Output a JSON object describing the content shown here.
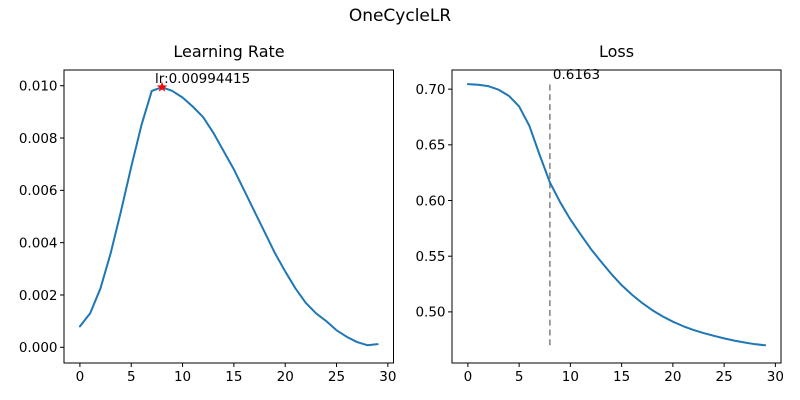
{
  "figure": {
    "suptitle": "OneCycleLR",
    "background": "#ffffff",
    "axis_color": "#000000",
    "line_color": "#1f77b4"
  },
  "chart_data": [
    {
      "type": "line",
      "title": "Learning Rate",
      "xlabel": "",
      "ylabel": "",
      "grid": false,
      "legend": null,
      "x": [
        0,
        1,
        2,
        3,
        4,
        5,
        6,
        7,
        8,
        9,
        10,
        11,
        12,
        13,
        14,
        15,
        16,
        17,
        18,
        19,
        20,
        21,
        22,
        23,
        24,
        25,
        26,
        27,
        28,
        29
      ],
      "series": [
        {
          "name": "learning_rate",
          "color": "#1f77b4",
          "values": [
            0.0008,
            0.0013,
            0.00225,
            0.0036,
            0.0052,
            0.0069,
            0.0085,
            0.0098,
            0.00994415,
            0.0098,
            0.00955,
            0.0092,
            0.0088,
            0.0082,
            0.0075,
            0.0068,
            0.006,
            0.0052,
            0.0044,
            0.0036,
            0.0029,
            0.00225,
            0.0017,
            0.0013,
            0.001,
            0.00065,
            0.0004,
            0.0002,
            8e-05,
            0.00012
          ]
        }
      ],
      "xlim": [
        -1.55,
        30.55
      ],
      "ylim": [
        -0.0006,
        0.0106
      ],
      "xticks": {
        "values": [
          0,
          5,
          10,
          15,
          20,
          25,
          30
        ],
        "labels": [
          "0",
          "5",
          "10",
          "15",
          "20",
          "25",
          "30"
        ]
      },
      "yticks": {
        "values": [
          0.0,
          0.002,
          0.004,
          0.006,
          0.008,
          0.01
        ],
        "labels": [
          "0.000",
          "0.002",
          "0.004",
          "0.006",
          "0.008",
          "0.010"
        ]
      },
      "annotation": {
        "text": "lr:0.00994415",
        "x": 8,
        "y": 0.00994415,
        "marker": "star",
        "marker_color": "#ff0000"
      }
    },
    {
      "type": "line",
      "title": "Loss",
      "xlabel": "",
      "ylabel": "",
      "grid": false,
      "legend": null,
      "x": [
        0,
        1,
        2,
        3,
        4,
        5,
        6,
        7,
        8,
        9,
        10,
        11,
        12,
        13,
        14,
        15,
        16,
        17,
        18,
        19,
        20,
        21,
        22,
        23,
        24,
        25,
        26,
        27,
        28,
        29
      ],
      "series": [
        {
          "name": "loss",
          "color": "#1f77b4",
          "values": [
            0.7045,
            0.704,
            0.7027,
            0.6995,
            0.694,
            0.6845,
            0.667,
            0.641,
            0.6163,
            0.5985,
            0.583,
            0.5695,
            0.5565,
            0.545,
            0.534,
            0.524,
            0.5155,
            0.508,
            0.5015,
            0.496,
            0.4912,
            0.4872,
            0.4838,
            0.481,
            0.4785,
            0.4762,
            0.4742,
            0.4725,
            0.471,
            0.47
          ]
        }
      ],
      "xlim": [
        -1.55,
        30.55
      ],
      "ylim": [
        0.4541,
        0.7172
      ],
      "xticks": {
        "values": [
          0,
          5,
          10,
          15,
          20,
          25,
          30
        ],
        "labels": [
          "0",
          "5",
          "10",
          "15",
          "20",
          "25",
          "30"
        ]
      },
      "yticks": {
        "values": [
          0.5,
          0.55,
          0.6,
          0.65,
          0.7
        ],
        "labels": [
          "0.50",
          "0.55",
          "0.60",
          "0.65",
          "0.70"
        ]
      },
      "vline": {
        "x": 8,
        "label": "0.6163",
        "value": 0.6163,
        "color": "#808080",
        "style": "dashed",
        "ymin": 0.4696,
        "ymax": 0.7042
      }
    }
  ]
}
